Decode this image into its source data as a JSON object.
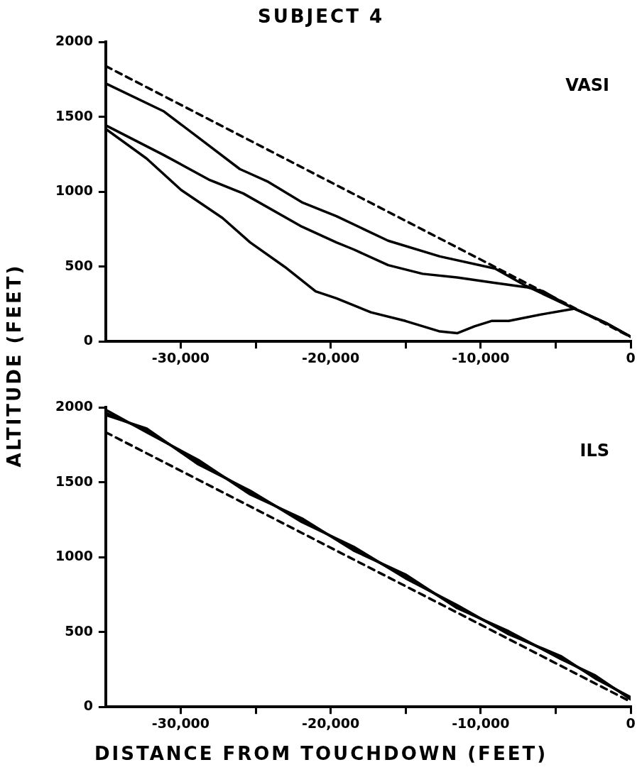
{
  "chart_data": [
    {
      "type": "line",
      "title": "SUBJECT 4",
      "subtitle": "VASI",
      "ylabel": "ALTITUDE (FEET)",
      "xlim": [
        -35000,
        0
      ],
      "ylim": [
        0,
        2000
      ],
      "xticks": [
        {
          "value": -30000,
          "label": "-30,000"
        },
        {
          "value": -25000,
          "label": null
        },
        {
          "value": -20000,
          "label": "-20,000"
        },
        {
          "value": -15000,
          "label": null
        },
        {
          "value": -10000,
          "label": "-10,000"
        },
        {
          "value": -5000,
          "label": null
        },
        0
      ],
      "yticks": [
        0,
        500,
        1000,
        1500,
        2000
      ],
      "grid": false,
      "legend": false,
      "marker": "none",
      "series": [
        {
          "color": "#000000",
          "line_style": "dashed",
          "x": [
            -35000,
            0
          ],
          "values": [
            1840,
            30
          ]
        },
        {
          "color": "#000000",
          "line_style": "solid",
          "x": [
            -35000,
            -31120,
            -28820,
            -26060,
            -24230,
            -21920,
            -19620,
            -16170,
            -12720,
            -9040,
            -6970,
            -3990,
            -1680,
            0
          ],
          "values": [
            1724,
            1537,
            1362,
            1152,
            1070,
            930,
            837,
            673,
            568,
            487,
            371,
            230,
            125,
            32
          ]
        },
        {
          "color": "#000000",
          "line_style": "solid",
          "x": [
            -35000,
            -31120,
            -28130,
            -25830,
            -21920,
            -19620,
            -18470,
            -16170,
            -13870,
            -11570,
            -9280,
            -6970,
            -5820,
            -3990,
            -1680,
            0
          ],
          "values": [
            1444,
            1245,
            1082,
            989,
            767,
            662,
            615,
            510,
            452,
            428,
            394,
            363,
            335,
            230,
            125,
            32
          ]
        },
        {
          "color": "#000000",
          "line_style": "solid",
          "x": [
            -35000,
            -32270,
            -29970,
            -27210,
            -25370,
            -23070,
            -21000,
            -19620,
            -17320,
            -15020,
            -12720,
            -11570,
            -10410,
            -9280,
            -8125,
            -5820,
            -3750,
            -1680,
            0
          ],
          "values": [
            1420,
            1222,
            1012,
            825,
            662,
            499,
            335,
            288,
            195,
            137,
            67,
            55,
            101,
            137,
            137,
            183,
            219,
            125,
            32
          ]
        }
      ]
    },
    {
      "type": "line",
      "subtitle": "ILS",
      "xlabel": "DISTANCE FROM TOUCHDOWN (FEET)",
      "xlim": [
        -35000,
        0
      ],
      "ylim": [
        0,
        2000
      ],
      "xticks": [
        {
          "value": -30000,
          "label": "-30,000"
        },
        {
          "value": -25000,
          "label": null
        },
        {
          "value": -20000,
          "label": "-20,000"
        },
        {
          "value": -15000,
          "label": null
        },
        {
          "value": -10000,
          "label": "-10,000"
        },
        {
          "value": -5000,
          "label": null
        },
        0
      ],
      "yticks": [
        0,
        500,
        1000,
        1500,
        2000
      ],
      "grid": false,
      "legend": false,
      "marker": "none",
      "series": [
        {
          "color": "#000000",
          "line_style": "dashed",
          "x": [
            -35000,
            0
          ],
          "values": [
            1835,
            35
          ]
        },
        {
          "color": "#000000",
          "line_style": "solid",
          "x": [
            -35000,
            -32270,
            -28820,
            -25370,
            -21920,
            -18470,
            -15020,
            -11570,
            -8125,
            -4660,
            -2360,
            0
          ],
          "values": [
            1965,
            1847,
            1635,
            1435,
            1247,
            1058,
            870,
            669,
            493,
            328,
            199,
            58
          ]
        },
        {
          "color": "#000000",
          "line_style": "solid",
          "x": [
            -35000,
            -32270,
            -28820,
            -25370,
            -21920,
            -18470,
            -15020,
            -11570,
            -8125,
            -4660,
            -2360,
            0
          ],
          "values": [
            1985,
            1835,
            1650,
            1420,
            1260,
            1045,
            885,
            660,
            505,
            320,
            210,
            50
          ]
        },
        {
          "color": "#000000",
          "line_style": "solid",
          "x": [
            -35000,
            -32270,
            -28820,
            -25370,
            -21920,
            -18470,
            -15020,
            -11570,
            -8125,
            -4660,
            -2360,
            0
          ],
          "values": [
            1950,
            1860,
            1620,
            1445,
            1235,
            1070,
            860,
            680,
            485,
            340,
            190,
            65
          ]
        }
      ]
    }
  ]
}
